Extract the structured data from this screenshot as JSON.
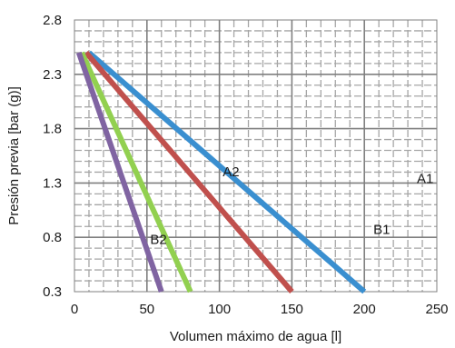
{
  "chart_data": {
    "type": "line",
    "xlabel": "Volumen máximo de agua [l]",
    "ylabel": "Presión previa [bar (g)]",
    "xlim": [
      0,
      250
    ],
    "ylim": [
      0.3,
      2.8
    ],
    "x_ticks": [
      "0",
      "50",
      "100",
      "150",
      "200",
      "250"
    ],
    "y_ticks": [
      "0.3",
      "0.8",
      "1.3",
      "1.8",
      "2.3",
      "2.8"
    ],
    "grid": true,
    "series": [
      {
        "name": "A1",
        "color": "#3a8fd0",
        "points": [
          [
            10,
            2.5
          ],
          [
            200,
            0.3
          ]
        ],
        "label_at": [
          242,
          1.3
        ]
      },
      {
        "name": "B1",
        "color": "#c0504d",
        "points": [
          [
            8,
            2.5
          ],
          [
            150,
            0.3
          ]
        ],
        "label_at": [
          212,
          0.83
        ]
      },
      {
        "name": "A2",
        "color": "#92d050",
        "points": [
          [
            5,
            2.5
          ],
          [
            80,
            0.3
          ]
        ],
        "label_at": [
          108,
          1.36
        ]
      },
      {
        "name": "B2",
        "color": "#8064a2",
        "points": [
          [
            3,
            2.5
          ],
          [
            60,
            0.3
          ]
        ],
        "label_at": [
          58,
          0.74
        ]
      }
    ]
  }
}
